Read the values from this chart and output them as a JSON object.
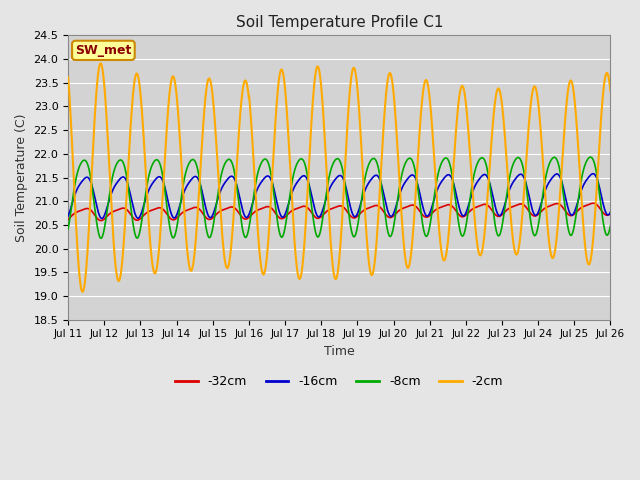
{
  "title": "Soil Temperature Profile C1",
  "xlabel": "Time",
  "ylabel": "Soil Temperature (C)",
  "ylim": [
    18.5,
    24.5
  ],
  "background_color": "#e5e5e5",
  "plot_bg_color": "#d3d3d3",
  "grid_color": "#ffffff",
  "annotation_label": "SW_met",
  "annotation_bg": "#ffff99",
  "annotation_border": "#cc8800",
  "annotation_text_color": "#8b0000",
  "series": {
    "-32cm": {
      "color": "#dd0000",
      "linewidth": 1.2
    },
    "-16cm": {
      "color": "#0000cc",
      "linewidth": 1.2
    },
    "-8cm": {
      "color": "#00aa00",
      "linewidth": 1.2
    },
    "-2cm": {
      "color": "#ffaa00",
      "linewidth": 1.5
    }
  },
  "xtick_labels": [
    "Jul 11",
    "Jul 12",
    "Jul 13",
    "Jul 14",
    "Jul 15",
    "Jul 16",
    "Jul 17",
    "Jul 18",
    "Jul 19",
    "Jul 20",
    "Jul 21",
    "Jul 22",
    "Jul 23",
    "Jul 24",
    "Jul 25",
    "Jul 26"
  ],
  "ytick_values": [
    18.5,
    19.0,
    19.5,
    20.0,
    20.5,
    21.0,
    21.5,
    22.0,
    22.5,
    23.0,
    23.5,
    24.0,
    24.5
  ]
}
